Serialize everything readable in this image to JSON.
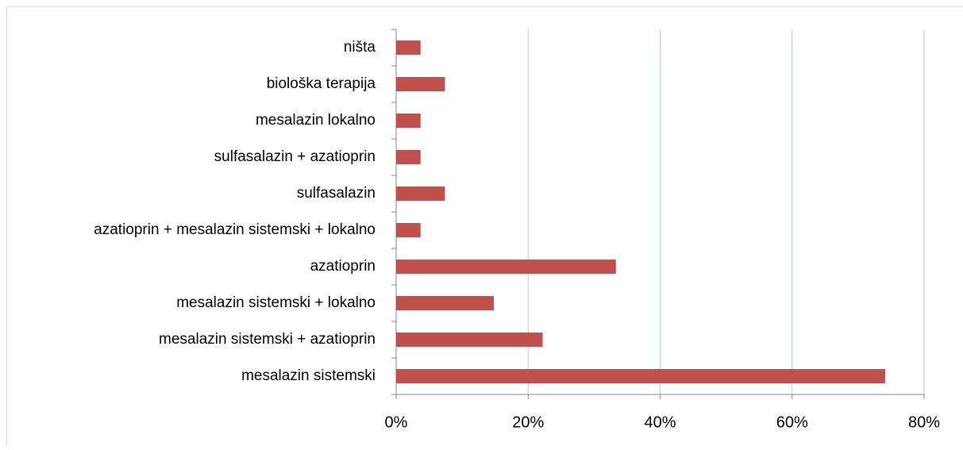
{
  "chart_data": {
    "type": "bar",
    "orientation": "horizontal",
    "categories": [
      "mesalazin sistemski",
      "mesalazin sistemski + azatioprin",
      "mesalazin sistemski + lokalno",
      "azatioprin",
      "azatioprin + mesalazin sistemski + lokalno",
      "sulfasalazin",
      "sulfasalazin + azatioprin",
      "mesalazin lokalno",
      "biološka terapija",
      "ništa"
    ],
    "values": [
      74.1,
      22.2,
      14.8,
      33.3,
      3.7,
      7.4,
      3.7,
      3.7,
      7.4,
      3.7
    ],
    "color": "#c0504d",
    "xlim": [
      0,
      80
    ],
    "xticks": [
      {
        "value": 0,
        "label": "0%"
      },
      {
        "value": 20,
        "label": "20%"
      },
      {
        "value": 40,
        "label": "40%"
      },
      {
        "value": 60,
        "label": "60%"
      },
      {
        "value": 80,
        "label": "80%"
      }
    ],
    "grid": true
  }
}
